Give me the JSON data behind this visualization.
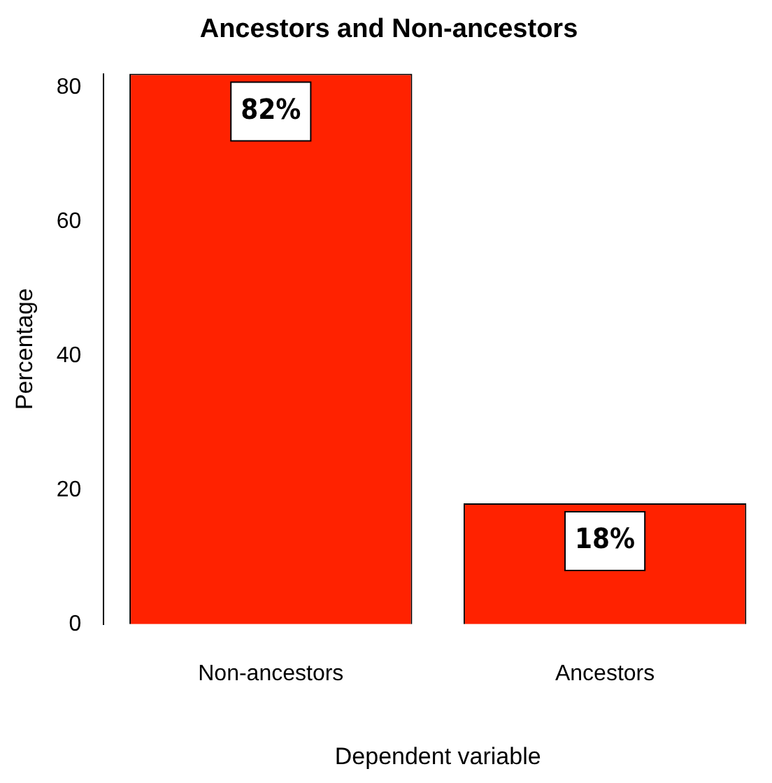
{
  "chart_data": {
    "type": "bar",
    "title": "Ancestors and Non-ancestors",
    "xlabel": "Dependent variable",
    "ylabel": "Percentage",
    "categories": [
      "Non-ancestors",
      "Ancestors"
    ],
    "values": [
      82,
      18
    ],
    "value_labels": [
      "82%",
      "18%"
    ],
    "color": "#ff2200",
    "ylim": [
      0,
      82
    ],
    "yticks": [
      0,
      20,
      40,
      60,
      80
    ],
    "grid": false,
    "legend": false
  }
}
